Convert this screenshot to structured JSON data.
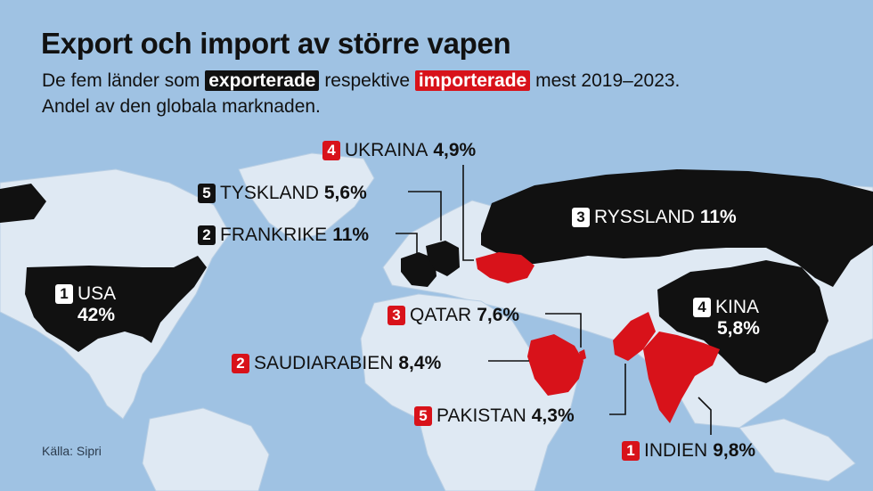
{
  "title": "Export och import av större vapen",
  "subtitle": {
    "before": "De fem länder som",
    "export_word": "exporterade",
    "middle": "respektive",
    "import_word": "importerade",
    "after": "mest 2019–2023.",
    "line2": "Andel av den globala marknaden."
  },
  "source": "Källa: Sipri",
  "colors": {
    "export": "#111111",
    "import": "#d8121a",
    "sea": "#9fc2e3",
    "land": "#dfe9f3"
  },
  "exporters": [
    {
      "rank": "1",
      "name": "USA",
      "share": "42%"
    },
    {
      "rank": "2",
      "name": "FRANKRIKE",
      "share": "11%"
    },
    {
      "rank": "3",
      "name": "RYSSLAND",
      "share": "11%"
    },
    {
      "rank": "4",
      "name": "KINA",
      "share": "5,8%"
    },
    {
      "rank": "5",
      "name": "TYSKLAND",
      "share": "5,6%"
    }
  ],
  "importers": [
    {
      "rank": "1",
      "name": "INDIEN",
      "share": "9,8%"
    },
    {
      "rank": "2",
      "name": "SAUDIARABIEN",
      "share": "8,4%"
    },
    {
      "rank": "3",
      "name": "QATAR",
      "share": "7,6%"
    },
    {
      "rank": "4",
      "name": "UKRAINA",
      "share": "4,9%"
    },
    {
      "rank": "5",
      "name": "PAKISTAN",
      "share": "4,3%"
    }
  ]
}
